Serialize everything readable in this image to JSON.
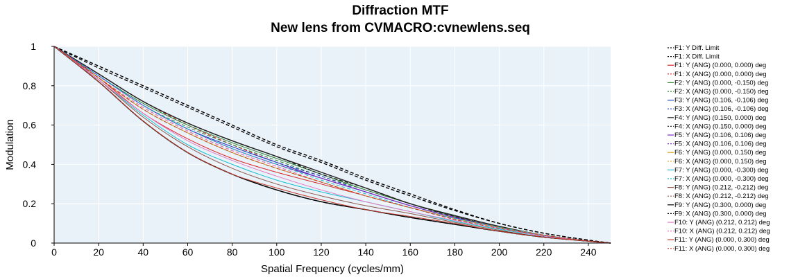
{
  "chart_data": {
    "type": "line",
    "title": "Diffraction MTF",
    "subtitle": "New lens from CVMACRO:cvnewlens.seq",
    "xlabel": "Spatial Frequency (cycles/mm)",
    "ylabel": "Modulation",
    "xlim": [
      0,
      250
    ],
    "ylim": [
      0,
      1
    ],
    "xticks": [
      0,
      20,
      40,
      60,
      80,
      100,
      120,
      140,
      160,
      180,
      200,
      220,
      240
    ],
    "yticks": [
      0,
      0.2,
      0.4,
      0.6,
      0.8,
      1
    ],
    "ytick_labels": [
      "0",
      "0.2",
      "0.4",
      "0.6",
      "0.8",
      "1"
    ],
    "plot_background": "#eaf2f9",
    "grid": true,
    "legend_position": "right",
    "x": [
      0,
      20,
      40,
      60,
      80,
      100,
      120,
      140,
      160,
      180,
      200,
      220,
      240,
      250
    ],
    "series": [
      {
        "name": "F1: Y Diff. Limit",
        "color": "#000000",
        "dash": "dashed",
        "values": [
          1,
          0.9,
          0.8,
          0.7,
          0.6,
          0.5,
          0.42,
          0.33,
          0.25,
          0.17,
          0.1,
          0.05,
          0.015,
          0
        ]
      },
      {
        "name": "F1: X Diff. Limit",
        "color": "#000000",
        "dash": "dashed",
        "values": [
          1,
          0.89,
          0.79,
          0.69,
          0.59,
          0.49,
          0.41,
          0.32,
          0.24,
          0.165,
          0.1,
          0.05,
          0.015,
          0
        ]
      },
      {
        "name": "F1: Y (ANG) (0.000, 0.000) deg",
        "color": "#d62728",
        "dash": "solid",
        "values": [
          1,
          0.84,
          0.66,
          0.53,
          0.43,
          0.36,
          0.3,
          0.24,
          0.18,
          0.125,
          0.08,
          0.04,
          0.01,
          0
        ]
      },
      {
        "name": "F1: X (ANG) (0.000, 0.000) deg",
        "color": "#d62728",
        "dash": "dashed",
        "values": [
          1,
          0.86,
          0.72,
          0.6,
          0.5,
          0.41,
          0.33,
          0.26,
          0.19,
          0.13,
          0.08,
          0.04,
          0.01,
          0
        ]
      },
      {
        "name": "F2: Y (ANG) (0.000, -0.150) deg",
        "color": "#2e7d32",
        "dash": "solid",
        "values": [
          1,
          0.85,
          0.71,
          0.6,
          0.51,
          0.43,
          0.35,
          0.27,
          0.2,
          0.135,
          0.08,
          0.04,
          0.01,
          0
        ]
      },
      {
        "name": "F2: X (ANG) (0.000, -0.150) deg",
        "color": "#2e7d32",
        "dash": "dashed",
        "values": [
          1,
          0.85,
          0.7,
          0.59,
          0.5,
          0.42,
          0.34,
          0.27,
          0.2,
          0.13,
          0.08,
          0.04,
          0.01,
          0
        ]
      },
      {
        "name": "F3: Y (ANG) (0.106, -0.106) deg",
        "color": "#1f3fbf",
        "dash": "solid",
        "values": [
          1,
          0.85,
          0.7,
          0.58,
          0.49,
          0.41,
          0.33,
          0.26,
          0.19,
          0.13,
          0.08,
          0.04,
          0.01,
          0
        ]
      },
      {
        "name": "F3: X (ANG) (0.106, -0.106) deg",
        "color": "#1f3fbf",
        "dash": "dashed",
        "values": [
          1,
          0.85,
          0.7,
          0.58,
          0.49,
          0.41,
          0.34,
          0.26,
          0.19,
          0.13,
          0.08,
          0.04,
          0.01,
          0
        ]
      },
      {
        "name": "F4: Y (ANG) (0.150, 0.000) deg",
        "color": "#222222",
        "dash": "solid",
        "values": [
          1,
          0.86,
          0.72,
          0.61,
          0.52,
          0.44,
          0.36,
          0.28,
          0.2,
          0.14,
          0.085,
          0.04,
          0.01,
          0
        ]
      },
      {
        "name": "F4: X (ANG) (0.150, 0.000) deg",
        "color": "#222222",
        "dash": "dashed",
        "values": [
          1,
          0.86,
          0.72,
          0.61,
          0.52,
          0.44,
          0.35,
          0.28,
          0.2,
          0.135,
          0.08,
          0.04,
          0.01,
          0
        ]
      },
      {
        "name": "F5: Y (ANG) (0.106, 0.106) deg",
        "color": "#7b2cbf",
        "dash": "solid",
        "values": [
          1,
          0.85,
          0.7,
          0.58,
          0.48,
          0.4,
          0.33,
          0.26,
          0.19,
          0.13,
          0.08,
          0.04,
          0.01,
          0
        ]
      },
      {
        "name": "F5: X (ANG) (0.106, 0.106) deg",
        "color": "#7b2cbf",
        "dash": "dashed",
        "values": [
          1,
          0.85,
          0.7,
          0.58,
          0.48,
          0.4,
          0.33,
          0.26,
          0.19,
          0.13,
          0.08,
          0.04,
          0.01,
          0
        ]
      },
      {
        "name": "F6: Y (ANG) (0.000, 0.150) deg",
        "color": "#d4a017",
        "dash": "solid",
        "values": [
          1,
          0.84,
          0.68,
          0.56,
          0.46,
          0.38,
          0.31,
          0.24,
          0.18,
          0.125,
          0.08,
          0.04,
          0.01,
          0
        ]
      },
      {
        "name": "F6: X (ANG) (0.000, 0.150) deg",
        "color": "#d4a017",
        "dash": "dashed",
        "values": [
          1,
          0.84,
          0.68,
          0.56,
          0.46,
          0.38,
          0.31,
          0.24,
          0.18,
          0.125,
          0.08,
          0.04,
          0.01,
          0
        ]
      },
      {
        "name": "F7: Y (ANG) (0.000, -0.300) deg",
        "color": "#17becf",
        "dash": "solid",
        "values": [
          1,
          0.83,
          0.65,
          0.5,
          0.4,
          0.32,
          0.26,
          0.21,
          0.16,
          0.11,
          0.07,
          0.035,
          0.01,
          0
        ]
      },
      {
        "name": "F7: X (ANG) (0.000, -0.300) deg",
        "color": "#17becf",
        "dash": "dashed",
        "values": [
          1,
          0.85,
          0.7,
          0.58,
          0.48,
          0.4,
          0.32,
          0.25,
          0.18,
          0.125,
          0.08,
          0.04,
          0.01,
          0
        ]
      },
      {
        "name": "F8: Y (ANG) (0.212, -0.212) deg",
        "color": "#8c564b",
        "dash": "solid",
        "values": [
          1,
          0.83,
          0.64,
          0.49,
          0.38,
          0.3,
          0.24,
          0.19,
          0.15,
          0.105,
          0.065,
          0.03,
          0.01,
          0
        ]
      },
      {
        "name": "F8: X (ANG) (0.212, -0.212) deg",
        "color": "#8c564b",
        "dash": "dashed",
        "values": [
          1,
          0.84,
          0.69,
          0.57,
          0.47,
          0.39,
          0.31,
          0.24,
          0.18,
          0.12,
          0.075,
          0.04,
          0.01,
          0
        ]
      },
      {
        "name": "F9: Y (ANG) (0.300, 0.000) deg",
        "color": "#000000",
        "dash": "solid",
        "values": [
          1,
          0.82,
          0.62,
          0.46,
          0.35,
          0.27,
          0.21,
          0.17,
          0.13,
          0.095,
          0.06,
          0.03,
          0.01,
          0
        ]
      },
      {
        "name": "F9: X (ANG) (0.300, 0.000) deg",
        "color": "#000000",
        "dash": "dashed",
        "values": [
          1,
          0.82,
          0.62,
          0.46,
          0.35,
          0.27,
          0.21,
          0.17,
          0.13,
          0.095,
          0.06,
          0.03,
          0.01,
          0
        ]
      },
      {
        "name": "F10: Y (ANG) (0.212, 0.212) deg",
        "color": "#e377c2",
        "dash": "solid",
        "values": [
          1,
          0.83,
          0.66,
          0.52,
          0.42,
          0.34,
          0.27,
          0.21,
          0.16,
          0.115,
          0.075,
          0.035,
          0.01,
          0
        ]
      },
      {
        "name": "F10: X (ANG) (0.212, 0.212) deg",
        "color": "#e377c2",
        "dash": "dashed",
        "values": [
          1,
          0.84,
          0.69,
          0.57,
          0.47,
          0.39,
          0.31,
          0.24,
          0.18,
          0.12,
          0.075,
          0.04,
          0.01,
          0
        ]
      },
      {
        "name": "F11: Y (ANG) (0.000, 0.300) deg",
        "color": "#c0392b",
        "dash": "solid",
        "values": [
          1,
          0.82,
          0.62,
          0.46,
          0.35,
          0.28,
          0.22,
          0.17,
          0.135,
          0.1,
          0.06,
          0.03,
          0.01,
          0
        ]
      },
      {
        "name": "F11: X (ANG) (0.000, 0.300) deg",
        "color": "#c0392b",
        "dash": "dashed",
        "values": [
          1,
          0.84,
          0.68,
          0.56,
          0.46,
          0.38,
          0.31,
          0.24,
          0.18,
          0.12,
          0.075,
          0.04,
          0.01,
          0
        ]
      }
    ]
  }
}
